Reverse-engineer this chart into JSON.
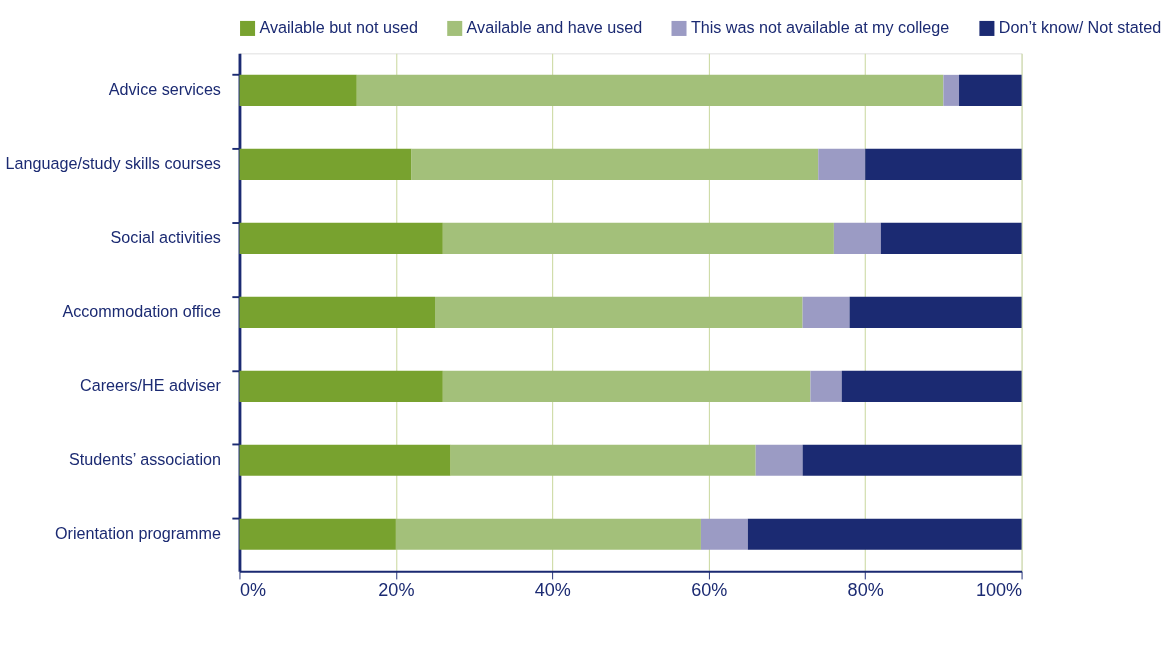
{
  "chart_data": {
    "type": "bar",
    "orientation": "horizontal",
    "stacked": true,
    "categories": [
      "Advice services",
      "Language/study skills courses",
      "Social activities",
      "Accommodation office",
      "Careers/HE adviser",
      "Students’ association",
      "Orientation programme"
    ],
    "series": [
      {
        "name": "Available but not used",
        "color": "#78a22f",
        "values": [
          15,
          22,
          26,
          25,
          26,
          27,
          20
        ]
      },
      {
        "name": "Available and have used",
        "color": "#a3c07a",
        "values": [
          75,
          52,
          50,
          47,
          47,
          39,
          39
        ]
      },
      {
        "name": "This was not available at my college",
        "color": "#9b9bc4",
        "values": [
          2,
          6,
          6,
          6,
          4,
          6,
          6
        ]
      },
      {
        "name": "Don’t know/ Not stated",
        "color": "#1b2a72",
        "values": [
          8,
          20,
          18,
          22,
          23,
          28,
          35
        ]
      }
    ],
    "xlim": [
      0,
      100
    ],
    "xticks": [
      {
        "value": 0,
        "label": "0%"
      },
      {
        "value": 20,
        "label": "20%"
      },
      {
        "value": 40,
        "label": "40%"
      },
      {
        "value": 60,
        "label": "60%"
      },
      {
        "value": 80,
        "label": "80%"
      },
      {
        "value": 100,
        "label": "100%"
      }
    ],
    "grid": "x",
    "legend": "top"
  }
}
